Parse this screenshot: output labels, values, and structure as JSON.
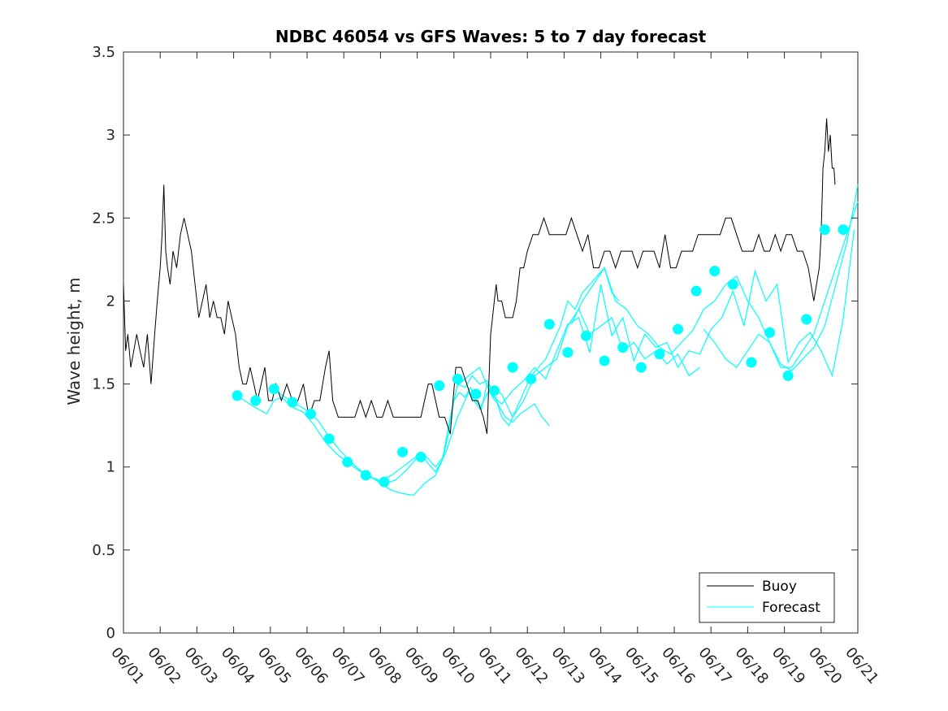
{
  "chart_data": {
    "type": "line",
    "title": "NDBC 46054 vs GFS Waves: 5 to 7 day forecast",
    "xlabel": "",
    "ylabel": "Wave height, m",
    "x_unit": "day of June",
    "xlim": [
      1,
      21
    ],
    "ylim": [
      0,
      3.5
    ],
    "yticks": [
      0,
      0.5,
      1,
      1.5,
      2,
      2.5,
      3,
      3.5
    ],
    "ytick_labels": [
      "0",
      "0.5",
      "1",
      "1.5",
      "2",
      "2.5",
      "3",
      "3.5"
    ],
    "xticks": [
      1,
      2,
      3,
      4,
      5,
      6,
      7,
      8,
      9,
      10,
      11,
      12,
      13,
      14,
      15,
      16,
      17,
      18,
      19,
      20,
      21
    ],
    "xtick_labels": [
      "06/01",
      "06/02",
      "06/03",
      "06/04",
      "06/05",
      "06/06",
      "06/07",
      "06/08",
      "06/09",
      "06/10",
      "06/11",
      "06/12",
      "06/13",
      "06/14",
      "06/15",
      "06/16",
      "06/17",
      "06/18",
      "06/19",
      "06/20",
      "06/21"
    ],
    "grid": false,
    "legend": {
      "location": "bottom-right",
      "entries": [
        "Buoy",
        "Forecast"
      ]
    },
    "series": [
      {
        "name": "Buoy",
        "color": "#000000",
        "x": [
          1.0,
          1.06,
          1.12,
          1.2,
          1.28,
          1.36,
          1.45,
          1.55,
          1.65,
          1.75,
          1.85,
          1.92,
          2.0,
          2.05,
          2.1,
          2.15,
          2.2,
          2.27,
          2.35,
          2.45,
          2.55,
          2.65,
          2.75,
          2.85,
          2.95,
          3.05,
          3.15,
          3.25,
          3.35,
          3.45,
          3.55,
          3.65,
          3.75,
          3.85,
          3.95,
          4.05,
          4.15,
          4.25,
          4.35,
          4.45,
          4.55,
          4.65,
          4.75,
          4.85,
          4.95,
          5.05,
          5.15,
          5.3,
          5.45,
          5.6,
          5.75,
          5.9,
          6.05,
          6.2,
          6.35,
          6.5,
          6.6,
          6.7,
          6.85,
          7.0,
          7.15,
          7.3,
          7.45,
          7.6,
          7.75,
          7.9,
          8.05,
          8.2,
          8.35,
          8.5,
          8.65,
          8.8,
          8.95,
          9.1,
          9.2,
          9.3,
          9.4,
          9.5,
          9.6,
          9.75,
          9.9,
          10.05,
          10.2,
          10.35,
          10.5,
          10.65,
          10.8,
          10.9,
          11.0,
          11.05,
          11.1,
          11.15,
          11.2,
          11.3,
          11.4,
          11.5,
          11.6,
          11.7,
          11.8,
          11.9,
          12.0,
          12.15,
          12.3,
          12.45,
          12.6,
          12.75,
          12.9,
          13.05,
          13.2,
          13.35,
          13.5,
          13.65,
          13.8,
          13.95,
          14.1,
          14.25,
          14.4,
          14.55,
          14.7,
          14.85,
          15.0,
          15.15,
          15.3,
          15.45,
          15.6,
          15.75,
          15.9,
          16.05,
          16.2,
          16.35,
          16.5,
          16.65,
          16.8,
          16.95,
          17.1,
          17.25,
          17.4,
          17.55,
          17.7,
          17.85,
          18.0,
          18.15,
          18.3,
          18.45,
          18.6,
          18.75,
          18.9,
          19.05,
          19.2,
          19.35,
          19.5,
          19.65,
          19.8,
          19.95,
          20.0,
          20.05,
          20.1,
          20.15,
          20.2,
          20.25,
          20.3,
          20.35,
          20.38
        ],
        "y": [
          2.1,
          1.7,
          1.8,
          1.6,
          1.7,
          1.8,
          1.7,
          1.6,
          1.8,
          1.5,
          1.8,
          2.0,
          2.2,
          2.4,
          2.7,
          2.3,
          2.2,
          2.1,
          2.3,
          2.2,
          2.4,
          2.5,
          2.4,
          2.3,
          2.1,
          1.9,
          2.0,
          2.1,
          1.9,
          2.0,
          1.9,
          1.9,
          1.8,
          2.0,
          1.9,
          1.8,
          1.6,
          1.5,
          1.5,
          1.6,
          1.5,
          1.4,
          1.5,
          1.6,
          1.4,
          1.4,
          1.5,
          1.4,
          1.5,
          1.4,
          1.4,
          1.5,
          1.3,
          1.4,
          1.4,
          1.6,
          1.7,
          1.4,
          1.3,
          1.3,
          1.3,
          1.3,
          1.4,
          1.3,
          1.4,
          1.3,
          1.3,
          1.4,
          1.3,
          1.3,
          1.3,
          1.3,
          1.3,
          1.3,
          1.4,
          1.5,
          1.5,
          1.4,
          1.3,
          1.3,
          1.2,
          1.6,
          1.6,
          1.5,
          1.4,
          1.4,
          1.3,
          1.2,
          1.8,
          1.9,
          2.0,
          2.1,
          2.0,
          2.0,
          1.9,
          1.9,
          1.9,
          2.0,
          2.2,
          2.2,
          2.3,
          2.4,
          2.4,
          2.5,
          2.4,
          2.4,
          2.4,
          2.4,
          2.5,
          2.4,
          2.3,
          2.4,
          2.2,
          2.2,
          2.3,
          2.3,
          2.2,
          2.3,
          2.3,
          2.3,
          2.2,
          2.3,
          2.3,
          2.3,
          2.2,
          2.4,
          2.2,
          2.2,
          2.3,
          2.3,
          2.3,
          2.4,
          2.4,
          2.4,
          2.4,
          2.4,
          2.5,
          2.5,
          2.4,
          2.3,
          2.3,
          2.3,
          2.4,
          2.3,
          2.3,
          2.4,
          2.3,
          2.4,
          2.4,
          2.3,
          2.3,
          2.2,
          2.0,
          2.2,
          2.4,
          2.8,
          2.9,
          3.1,
          2.9,
          3.0,
          2.8,
          2.8,
          2.7
        ]
      },
      {
        "name": "Forecast",
        "color": "#00ffff",
        "lines": [
          {
            "x": [
              4.1,
              4.5,
              4.9,
              5.1,
              5.3,
              5.6,
              5.9,
              6.2,
              6.5,
              6.8,
              7.1,
              7.4,
              7.7,
              8.0,
              8.3,
              8.6,
              8.9,
              9.1,
              9.3,
              9.5,
              9.7,
              9.85,
              10.0,
              10.15,
              10.3,
              10.45,
              10.6,
              10.75,
              10.9,
              11.05,
              11.2,
              11.4,
              11.6,
              11.8,
              12.0,
              12.2,
              12.4,
              12.6
            ],
            "y": [
              1.43,
              1.37,
              1.32,
              1.4,
              1.42,
              1.36,
              1.33,
              1.25,
              1.15,
              1.08,
              1.03,
              0.98,
              0.94,
              0.92,
              0.95,
              1.0,
              1.05,
              1.08,
              1.02,
              0.97,
              1.05,
              1.2,
              1.4,
              1.45,
              1.42,
              1.48,
              1.4,
              1.35,
              1.5,
              1.42,
              1.38,
              1.3,
              1.27,
              1.32,
              1.35,
              1.38,
              1.3,
              1.25
            ]
          },
          {
            "x": [
              5.1,
              5.4,
              5.7,
              6.0,
              6.3,
              6.6,
              6.9,
              7.2,
              7.5,
              7.8,
              8.1,
              8.4,
              8.7,
              8.9,
              9.1,
              9.3,
              9.5,
              9.7,
              9.9,
              10.1,
              10.3,
              10.5,
              10.7,
              10.9,
              11.1,
              11.3,
              11.5,
              11.7,
              11.9,
              12.1,
              12.3,
              12.5,
              12.7,
              12.9,
              13.1,
              13.3,
              13.5,
              13.7,
              13.9,
              14.1,
              14.3,
              14.5
            ],
            "y": [
              1.47,
              1.42,
              1.38,
              1.34,
              1.28,
              1.18,
              1.1,
              1.03,
              0.97,
              0.93,
              0.9,
              0.92,
              0.98,
              1.03,
              1.09,
              1.05,
              1.0,
              1.06,
              1.3,
              1.5,
              1.48,
              1.55,
              1.5,
              1.52,
              1.44,
              1.3,
              1.25,
              1.35,
              1.45,
              1.55,
              1.6,
              1.65,
              1.75,
              1.85,
              2.0,
              1.95,
              2.05,
              2.1,
              2.15,
              2.2,
              2.05,
              2.0
            ]
          },
          {
            "x": [
              7.1,
              7.4,
              7.7,
              8.0,
              8.3,
              8.6,
              8.9,
              9.2,
              9.5,
              9.8,
              10.1,
              10.4,
              10.7,
              11.0,
              11.3,
              11.6,
              11.9,
              12.2,
              12.5,
              12.8,
              13.1,
              13.4,
              13.7,
              14.0,
              14.3,
              14.6,
              14.9,
              15.2,
              15.5,
              15.8,
              16.1,
              16.4,
              16.7
            ],
            "y": [
              1.03,
              0.98,
              0.95,
              0.9,
              0.86,
              0.84,
              0.83,
              0.9,
              0.95,
              1.1,
              1.3,
              1.45,
              1.35,
              1.48,
              1.44,
              1.3,
              1.4,
              1.55,
              1.6,
              1.65,
              1.85,
              1.95,
              1.8,
              1.85,
              1.9,
              1.7,
              1.75,
              1.65,
              1.7,
              1.62,
              1.68,
              1.55,
              1.6
            ]
          },
          {
            "x": [
              10.1,
              10.4,
              10.7,
              11.0,
              11.3,
              11.6,
              11.9,
              12.2,
              12.5,
              12.8,
              13.1,
              13.4,
              13.7,
              14.0,
              14.3,
              14.6,
              14.9,
              15.2,
              15.5,
              15.8,
              16.1,
              16.4,
              16.7,
              17.0,
              17.3,
              17.6,
              17.9,
              18.2,
              18.5,
              18.8,
              19.1,
              19.4,
              19.7,
              20.0,
              20.3,
              20.6,
              20.9
            ],
            "y": [
              1.49,
              1.55,
              1.6,
              1.44,
              1.38,
              1.46,
              1.52,
              1.6,
              1.53,
              1.7,
              1.86,
              1.9,
              1.69,
              2.1,
              1.79,
              1.9,
              1.64,
              1.8,
              1.72,
              1.75,
              1.6,
              1.7,
              1.68,
              1.83,
              1.9,
              2.06,
              1.85,
              2.18,
              2.0,
              2.1,
              1.63,
              1.75,
              1.81,
              1.7,
              1.55,
              1.89,
              2.43
            ]
          },
          {
            "x": [
              13.2,
              13.5,
              13.8,
              14.1,
              14.4,
              14.7,
              15.0,
              15.3,
              15.6,
              15.9,
              16.2,
              16.5,
              16.8,
              17.1,
              17.4,
              17.7,
              18.0,
              18.3,
              18.6,
              18.9,
              19.2,
              19.5,
              19.8,
              20.1,
              20.4,
              20.7,
              21.0
            ],
            "y": [
              1.86,
              2.0,
              2.1,
              2.2,
              2.0,
              1.95,
              1.85,
              1.8,
              1.72,
              1.68,
              1.75,
              1.82,
              1.95,
              2.0,
              2.1,
              2.15,
              2.0,
              1.9,
              1.75,
              1.6,
              1.6,
              1.7,
              1.8,
              2.0,
              2.2,
              2.4,
              2.6
            ]
          },
          {
            "x": [
              16.8,
              17.1,
              17.4,
              17.7,
              18.0,
              18.3,
              18.6,
              18.9,
              19.2,
              19.5,
              19.8,
              20.1,
              20.4,
              20.7,
              21.0
            ],
            "y": [
              1.83,
              1.75,
              1.65,
              1.6,
              1.7,
              1.8,
              1.75,
              1.62,
              1.58,
              1.65,
              1.72,
              1.85,
              2.1,
              2.35,
              2.7
            ]
          }
        ]
      },
      {
        "name": "Forecast points",
        "color": "#00ffff",
        "x": [
          4.1,
          4.6,
          5.1,
          5.6,
          6.1,
          6.6,
          7.1,
          7.6,
          8.1,
          8.6,
          9.1,
          9.6,
          10.1,
          10.6,
          11.1,
          11.6,
          12.1,
          12.6,
          13.1,
          13.6,
          14.1,
          14.6,
          15.1,
          15.6,
          16.1,
          16.6,
          17.1,
          17.6,
          18.1,
          18.6,
          19.1,
          19.6,
          20.1,
          20.6
        ],
        "y": [
          1.43,
          1.4,
          1.47,
          1.39,
          1.32,
          1.17,
          1.03,
          0.95,
          0.91,
          1.09,
          1.06,
          1.49,
          1.53,
          1.44,
          1.46,
          1.6,
          1.53,
          1.86,
          1.69,
          1.79,
          1.64,
          1.72,
          1.6,
          1.68,
          1.83,
          2.06,
          2.18,
          2.1,
          1.63,
          1.81,
          1.55,
          1.89,
          2.43,
          2.43
        ]
      }
    ]
  }
}
